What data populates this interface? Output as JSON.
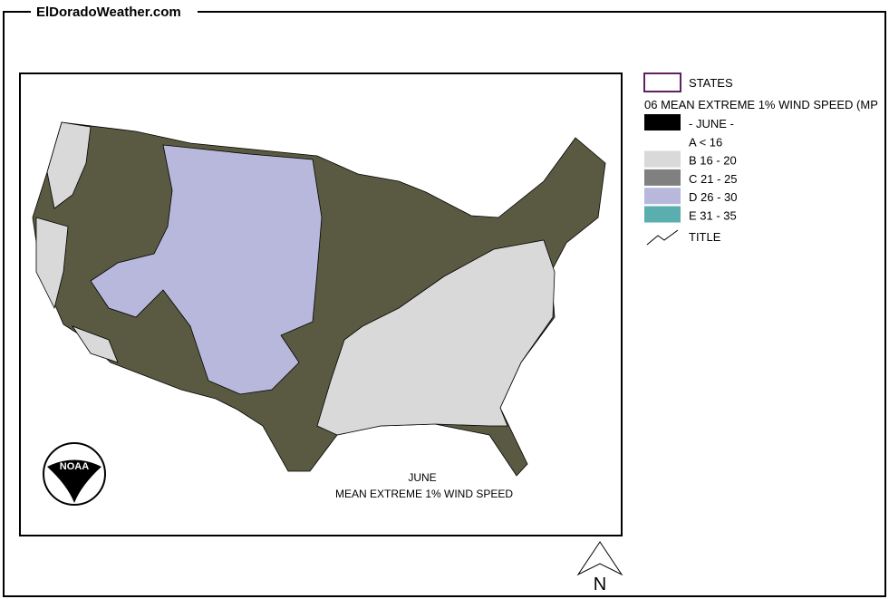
{
  "header": {
    "title": "ElDoradoWeather.com"
  },
  "legend": {
    "layer_states": "STATES",
    "layer_wind": "06 MEAN EXTREME 1% WIND SPEED (MP",
    "items": [
      {
        "label": "- JUNE -",
        "color": "#000000"
      },
      {
        "label": "A < 16",
        "color": "#ffffff"
      },
      {
        "label": "B 16 - 20",
        "color": "#d9d9d9"
      },
      {
        "label": "C 21 - 25",
        "color": "#808080"
      },
      {
        "label": "D 26 - 30",
        "color": "#b8b8dc"
      },
      {
        "label": "E 31 - 35",
        "color": "#5aaeae"
      }
    ],
    "layer_title": "TITLE"
  },
  "map": {
    "annotation_month": "JUNE",
    "annotation_title": "MEAN EXTREME 1% WIND SPEED",
    "logo": "NOAA",
    "north": "N"
  }
}
